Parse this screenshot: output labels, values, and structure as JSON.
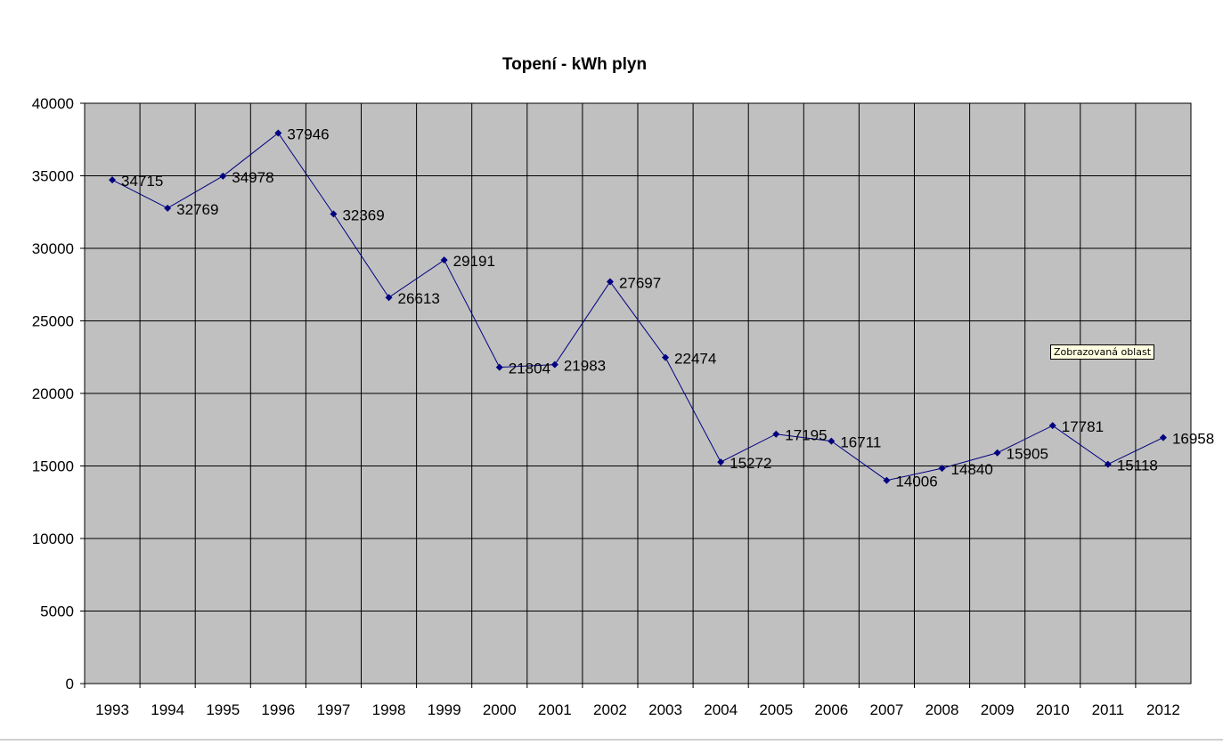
{
  "chart_data": {
    "type": "line",
    "title": "Topení - kWh plyn",
    "xlabel": "",
    "ylabel": "",
    "categories": [
      "1993",
      "1994",
      "1995",
      "1996",
      "1997",
      "1998",
      "1999",
      "2000",
      "2001",
      "2002",
      "2003",
      "2004",
      "2005",
      "2006",
      "2007",
      "2008",
      "2009",
      "2010",
      "2011",
      "2012"
    ],
    "series": [
      {
        "name": "kWh plyn",
        "values": [
          34715,
          32769,
          34978,
          37946,
          32369,
          26613,
          29191,
          21804,
          21983,
          27697,
          22474,
          15272,
          17195,
          16711,
          14006,
          14840,
          15905,
          17781,
          15118,
          16958
        ]
      }
    ],
    "ylim": [
      0,
      40000
    ],
    "yticks": [
      0,
      5000,
      10000,
      15000,
      20000,
      25000,
      30000,
      35000,
      40000
    ],
    "grid": true,
    "legend": "none",
    "colors": {
      "line": "#000080",
      "plot_bg": "#c0c0c0",
      "grid": "#000000"
    }
  },
  "tooltip": "Zobrazovaná oblast"
}
